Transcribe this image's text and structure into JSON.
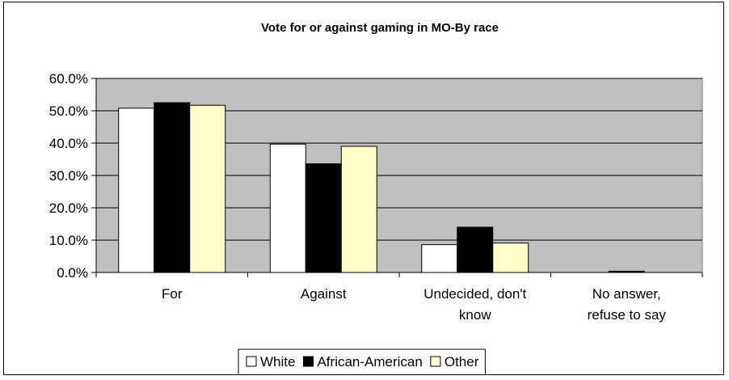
{
  "chart_data": {
    "type": "bar",
    "title": "Vote for or against gaming in MO-By race",
    "xlabel": "",
    "ylabel": "",
    "categories": [
      "For",
      "Against",
      "Undecided, don't know",
      "No answer, refuse to say"
    ],
    "category_lines": [
      [
        "For"
      ],
      [
        "Against"
      ],
      [
        "Undecided, don't",
        "know"
      ],
      [
        "No answer,",
        "refuse to say"
      ]
    ],
    "series": [
      {
        "name": "White",
        "values": [
          50.8,
          39.7,
          8.6,
          0.0
        ],
        "color": "#ffffff"
      },
      {
        "name": "African-American",
        "values": [
          52.5,
          33.6,
          14.0,
          0.4
        ],
        "color": "#000000"
      },
      {
        "name": "Other",
        "values": [
          51.7,
          39.0,
          9.1,
          0.0
        ],
        "color": "#ffffcc"
      }
    ],
    "ylim": [
      0,
      60
    ],
    "yticks": [
      0,
      10,
      20,
      30,
      40,
      50,
      60
    ],
    "ytick_labels": [
      "0.0%",
      "10.0%",
      "20.0%",
      "30.0%",
      "40.0%",
      "50.0%",
      "60.0%"
    ],
    "plot_background": "#c0c0c0",
    "grid": true,
    "legend": "bottom"
  }
}
